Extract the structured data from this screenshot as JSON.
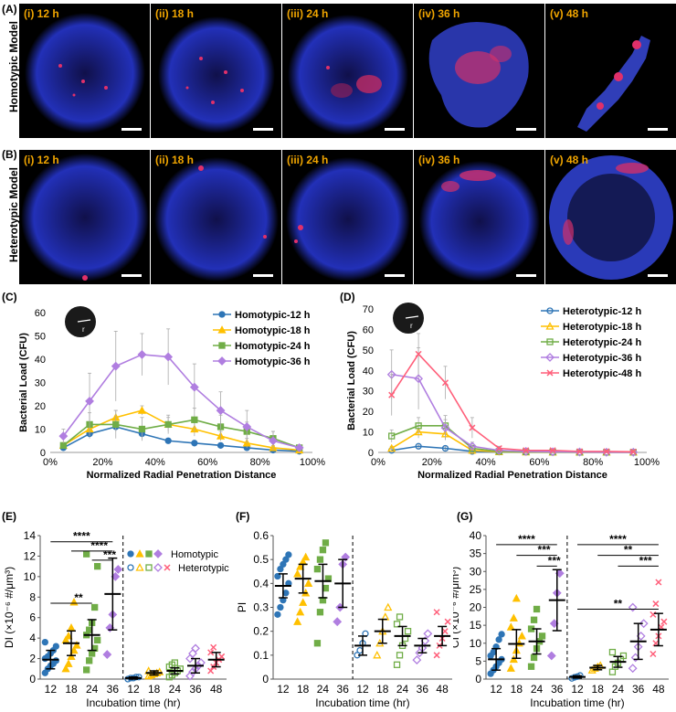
{
  "panels": {
    "A": "(A)",
    "B": "(B)",
    "C": "(C)",
    "D": "(D)",
    "E": "(E)",
    "F": "(F)",
    "G": "(G)"
  },
  "row_labels": {
    "homotypic": "Homotypic Model",
    "heterotypic": "Heterotypic Model"
  },
  "images": {
    "homotypic": [
      "(i) 12 h",
      "(ii) 18 h",
      "(iii) 24 h",
      "(iv) 36 h",
      "(v) 48 h"
    ],
    "heterotypic": [
      "(i) 12 h",
      "(ii) 18 h",
      "(iii) 24 h",
      "(iv) 36 h",
      "(v) 48 h"
    ]
  },
  "colors": {
    "s12": "#2e75b6",
    "s18": "#ffc000",
    "s24": "#70ad47",
    "s36": "#b07ee0",
    "s48": "#ff5f7a"
  },
  "chart_data": [
    {
      "id": "C",
      "type": "line",
      "title": "",
      "xlabel": "Normalized Radial Penetration Distance",
      "ylabel": "Bacterial Load (CFU)",
      "x": [
        5,
        15,
        25,
        35,
        45,
        55,
        65,
        75,
        85,
        95
      ],
      "xlim": [
        0,
        100
      ],
      "ylim": [
        0,
        60
      ],
      "xticks": [
        "0%",
        "20%",
        "40%",
        "60%",
        "80%",
        "100%"
      ],
      "yticks": [
        "0",
        "10",
        "20",
        "30",
        "40",
        "50",
        "60"
      ],
      "series": [
        {
          "name": "Homotypic-12 h",
          "values": [
            2,
            8,
            11,
            8,
            5,
            4,
            3,
            2,
            1,
            0.5
          ],
          "err": [
            1,
            2,
            2,
            2,
            1,
            1,
            1,
            1,
            0.5,
            0.5
          ]
        },
        {
          "name": "Homotypic-18 h",
          "values": [
            3,
            10,
            15,
            18,
            12,
            10,
            7,
            4,
            2,
            1
          ],
          "err": [
            1,
            3,
            3,
            2,
            3,
            3,
            2,
            2,
            1,
            0.5
          ]
        },
        {
          "name": "Homotypic-24 h",
          "values": [
            3,
            12,
            12,
            10,
            12,
            14,
            11,
            9,
            6,
            2
          ],
          "err": [
            1,
            5,
            6,
            5,
            4,
            5,
            5,
            4,
            3,
            1
          ]
        },
        {
          "name": "Homotypic-36 h",
          "values": [
            7,
            22,
            37,
            42,
            41,
            28,
            18,
            11,
            5,
            2
          ],
          "err": [
            3,
            12,
            15,
            9,
            12,
            10,
            8,
            7,
            4,
            1
          ]
        }
      ]
    },
    {
      "id": "D",
      "type": "line",
      "title": "",
      "xlabel": "Normalized Radial Penetration Distance",
      "ylabel": "Bacterial Load (CFU)",
      "x": [
        5,
        15,
        25,
        35,
        45,
        55,
        65,
        75,
        85,
        95
      ],
      "xlim": [
        0,
        100
      ],
      "ylim": [
        0,
        70
      ],
      "xticks": [
        "0%",
        "20%",
        "40%",
        "60%",
        "80%",
        "100%"
      ],
      "yticks": [
        "0",
        "10",
        "20",
        "30",
        "40",
        "50",
        "60",
        "70"
      ],
      "series": [
        {
          "name": "Heterotypic-12 h",
          "values": [
            1,
            3,
            2,
            0.5,
            0.2,
            0.1,
            0.1,
            0.1,
            0.1,
            0.1
          ],
          "err": [
            0.5,
            1,
            1,
            0.3,
            0.1,
            0.1,
            0.1,
            0.1,
            0.1,
            0.1
          ]
        },
        {
          "name": "Heterotypic-18 h",
          "values": [
            2,
            10,
            9,
            1,
            0.3,
            0.2,
            0.1,
            0.1,
            0.1,
            0.1
          ],
          "err": [
            1,
            3,
            3,
            1,
            0.2,
            0.1,
            0.1,
            0.1,
            0.1,
            0.1
          ]
        },
        {
          "name": "Heterotypic-24 h",
          "values": [
            8,
            13,
            13,
            2,
            0.5,
            0.3,
            0.2,
            0.1,
            0.1,
            0.1
          ],
          "err": [
            3,
            4,
            3,
            1,
            0.3,
            0.2,
            0.1,
            0.1,
            0.1,
            0.1
          ]
        },
        {
          "name": "Heterotypic-36 h",
          "values": [
            38,
            36,
            12,
            3,
            1,
            0.5,
            0.3,
            0.2,
            0.1,
            0.1
          ],
          "err": [
            12,
            15,
            6,
            2,
            0.5,
            0.3,
            0.2,
            0.1,
            0.1,
            0.1
          ]
        },
        {
          "name": "Heterotypic-48 h",
          "values": [
            28,
            48,
            34,
            12,
            2,
            1,
            1,
            0.5,
            0.5,
            0.3
          ],
          "err": [
            10,
            10,
            8,
            5,
            1,
            0.5,
            0.5,
            0.3,
            0.3,
            0.2
          ]
        }
      ]
    },
    {
      "id": "E",
      "type": "scatter",
      "ylabel": "DI (×10⁻⁶ #/μm³)",
      "xlabel": "Incubation time (hr)",
      "ylim": [
        0,
        14
      ],
      "yticks": [
        "0",
        "2",
        "4",
        "6",
        "8",
        "10",
        "12",
        "14"
      ],
      "categories": [
        "12",
        "18",
        "24",
        "36",
        "12",
        "18",
        "24",
        "36",
        "48"
      ],
      "legend": {
        "homotypic": "Homotypic",
        "heterotypic": "Heterotypic"
      },
      "means": [
        1.9,
        3.5,
        4.3,
        8.3,
        0.1,
        0.6,
        0.8,
        1.3,
        1.9
      ],
      "errs": [
        0.9,
        1.2,
        1.5,
        3.5,
        0.1,
        0.2,
        0.3,
        0.7,
        0.7
      ],
      "points": [
        [
          0.6,
          1.0,
          1.3,
          1.5,
          1.8,
          2.0,
          2.2,
          2.5,
          2.8,
          3.2,
          3.6
        ],
        [
          1.0,
          1.5,
          2.2,
          2.8,
          3.3,
          3.8,
          4.2,
          5.0,
          7.5
        ],
        [
          0.9,
          1.8,
          2.5,
          3.0,
          3.8,
          4.3,
          4.8,
          5.5,
          7.0,
          11.0,
          12.2
        ],
        [
          2.4,
          5.0,
          6.3,
          10.0,
          10.7
        ],
        [
          0.0,
          0.1,
          0.1,
          0.2,
          0.2
        ],
        [
          0.3,
          0.4,
          0.5,
          0.6,
          0.7,
          0.8
        ],
        [
          0.2,
          0.4,
          0.6,
          0.8,
          1.0,
          1.2,
          1.4,
          1.6
        ],
        [
          0.3,
          0.7,
          1.0,
          1.3,
          1.6,
          2.0,
          2.5,
          3.0
        ],
        [
          0.8,
          1.2,
          1.6,
          1.9,
          2.2,
          2.6,
          3.1
        ]
      ],
      "significance": [
        {
          "label": "**",
          "from": 0,
          "to": 2,
          "y": 7.4
        },
        {
          "label": "****",
          "from": 0,
          "to": 3,
          "y": 13.4
        },
        {
          "label": "****",
          "from": 1,
          "to": 3,
          "y": 12.5
        },
        {
          "label": "***",
          "from": 2,
          "to": 3,
          "y": 11.6
        }
      ]
    },
    {
      "id": "F",
      "type": "scatter",
      "ylabel": "PI",
      "xlabel": "Incubation time (hr)",
      "ylim": [
        0,
        0.6
      ],
      "yticks": [
        "0",
        "0.1",
        "0.2",
        "0.3",
        "0.4",
        "0.5",
        "0.6"
      ],
      "categories": [
        "12",
        "18",
        "24",
        "36",
        "12",
        "18",
        "24",
        "36",
        "48"
      ],
      "means": [
        0.39,
        0.42,
        0.41,
        0.4,
        0.14,
        0.2,
        0.18,
        0.14,
        0.18
      ],
      "errs": [
        0.05,
        0.06,
        0.07,
        0.1,
        0.04,
        0.05,
        0.04,
        0.03,
        0.04
      ],
      "points": [
        [
          0.27,
          0.3,
          0.33,
          0.36,
          0.4,
          0.43,
          0.46,
          0.48,
          0.5,
          0.52
        ],
        [
          0.24,
          0.28,
          0.32,
          0.36,
          0.4,
          0.44,
          0.47,
          0.49,
          0.51
        ],
        [
          0.15,
          0.28,
          0.33,
          0.38,
          0.42,
          0.46,
          0.5,
          0.54,
          0.57
        ],
        [
          0.24,
          0.3,
          0.48,
          0.51
        ],
        [
          0.1,
          0.12,
          0.15,
          0.19
        ],
        [
          0.1,
          0.15,
          0.2,
          0.26,
          0.3
        ],
        [
          0.06,
          0.1,
          0.14,
          0.17,
          0.2,
          0.23,
          0.26
        ],
        [
          0.08,
          0.11,
          0.13,
          0.16,
          0.19
        ],
        [
          0.1,
          0.14,
          0.17,
          0.2,
          0.24,
          0.28
        ]
      ]
    },
    {
      "id": "G",
      "type": "scatter",
      "ylabel": "CI (×10⁻⁶ #/μm³)",
      "xlabel": "Incubation time (hr)",
      "ylim": [
        0,
        40
      ],
      "yticks": [
        "0",
        "5",
        "10",
        "15",
        "20",
        "25",
        "30",
        "35",
        "40"
      ],
      "categories": [
        "12",
        "18",
        "24",
        "36",
        "12",
        "18",
        "24",
        "36",
        "48"
      ],
      "means": [
        5.5,
        9.8,
        10.5,
        22.0,
        0.6,
        3.2,
        4.8,
        10.5,
        13.8
      ],
      "errs": [
        3.0,
        4.0,
        3.5,
        8.5,
        0.3,
        0.6,
        1.5,
        5.0,
        4.5
      ],
      "points": [
        [
          1.5,
          2.5,
          3.5,
          4.5,
          5.5,
          6.5,
          7.5,
          9.0,
          11.0,
          12.5
        ],
        [
          3.0,
          5.5,
          8.0,
          10.0,
          12.0,
          14.5,
          17.0,
          22.5
        ],
        [
          3.5,
          6.0,
          8.5,
          10.5,
          12.0,
          14.0,
          16.5,
          19.5
        ],
        [
          6.5,
          15.5,
          24.0,
          29.5
        ],
        [
          0.2,
          0.5,
          0.7,
          1.0
        ],
        [
          2.5,
          3.0,
          3.4,
          3.8
        ],
        [
          2.0,
          3.5,
          4.5,
          5.5,
          6.5,
          7.5
        ],
        [
          3.0,
          6.0,
          9.0,
          12.0,
          15.5,
          20.0
        ],
        [
          7.0,
          10.0,
          12.0,
          14.5,
          16.0,
          18.0,
          21.0,
          27.0
        ]
      ],
      "significance": [
        {
          "label": "****",
          "from": 0,
          "to": 3,
          "y": 37.5
        },
        {
          "label": "***",
          "from": 1,
          "to": 3,
          "y": 34.5
        },
        {
          "label": "***",
          "from": 2,
          "to": 3,
          "y": 31.5
        },
        {
          "label": "****",
          "from": 4,
          "to": 8,
          "y": 37.5
        },
        {
          "label": "**",
          "from": 5,
          "to": 8,
          "y": 34.5
        },
        {
          "label": "***",
          "from": 6,
          "to": 8,
          "y": 31.5
        },
        {
          "label": "**",
          "from": 4,
          "to": 8,
          "y": 19.5
        }
      ]
    }
  ]
}
